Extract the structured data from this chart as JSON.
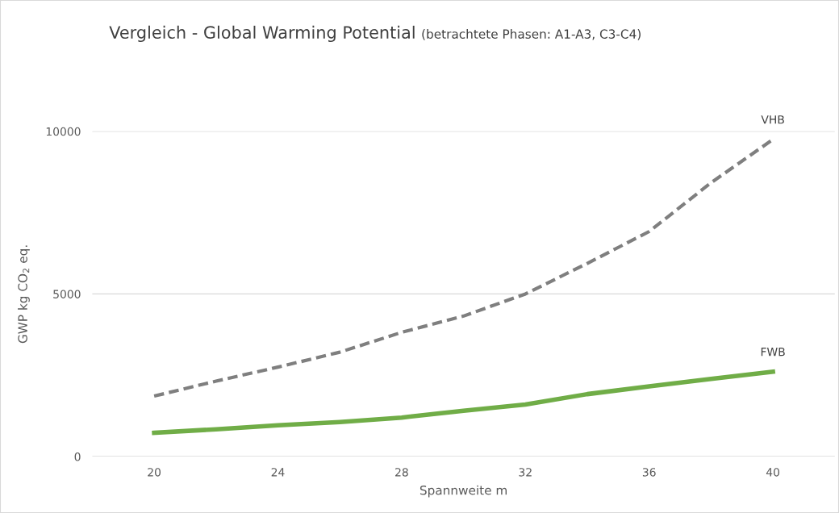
{
  "chart_data": {
    "type": "line",
    "title": "Vergleich - Global Warming Potential",
    "subtitle": "(betrachtete Phasen: A1-A3, C3-C4)",
    "xlabel": "Spannweite m",
    "ylabel": "GWP kg CO$_{2}$ eq.",
    "x": [
      20,
      22,
      24,
      26,
      28,
      30,
      32,
      34,
      36,
      38,
      40
    ],
    "series": [
      {
        "name": "VHB",
        "color": "#7f7f7f",
        "line_style": "dashed",
        "values": [
          1860,
          2320,
          2750,
          3210,
          3820,
          4320,
          5000,
          5940,
          6920,
          8420,
          9750
        ]
      },
      {
        "name": "FWB",
        "color": "#70ad47",
        "line_style": "solid",
        "values": [
          730,
          840,
          960,
          1060,
          1200,
          1410,
          1600,
          1920,
          2160,
          2390,
          2610
        ]
      }
    ],
    "xlim": [
      18,
      42
    ],
    "xticks": [
      20,
      24,
      28,
      32,
      36,
      40
    ],
    "ylim": [
      0,
      10000
    ],
    "yticks": [
      0,
      5000,
      10000
    ],
    "grid": "y",
    "legend": false,
    "marker": "none"
  }
}
